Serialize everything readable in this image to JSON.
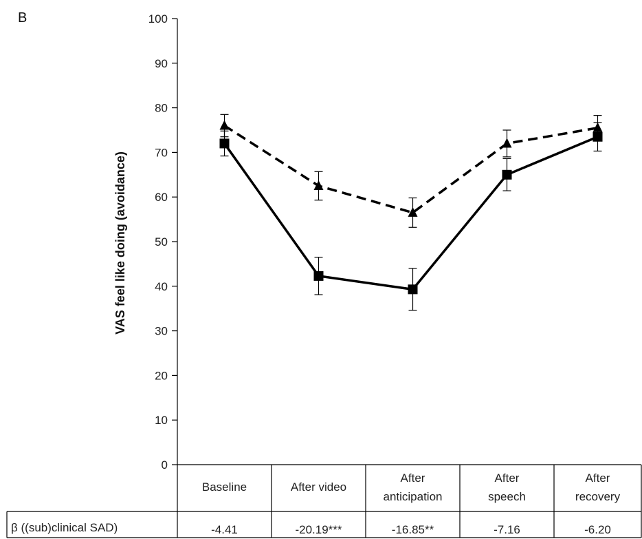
{
  "panel_label": "B",
  "chart_data": {
    "type": "line",
    "ylabel": "VAS feel like doing (avoidance)",
    "ylim": [
      0,
      100
    ],
    "yticks": [
      "0",
      "10",
      "20",
      "30",
      "40",
      "50",
      "60",
      "70",
      "80",
      "90",
      "100"
    ],
    "categories": [
      [
        "Baseline"
      ],
      [
        "After video"
      ],
      [
        "After",
        "anticipation"
      ],
      [
        "After",
        "speech"
      ],
      [
        "After",
        "recovery"
      ]
    ],
    "series": [
      {
        "style": "dashed",
        "marker": "triangle",
        "color": "#000000",
        "values": [
          76,
          62.5,
          56.5,
          72,
          75.5
        ],
        "err": [
          2.5,
          3.2,
          3.3,
          3.0,
          2.8
        ]
      },
      {
        "style": "solid",
        "marker": "square",
        "color": "#000000",
        "values": [
          72,
          42.3,
          39.3,
          65,
          73.5
        ],
        "err": [
          2.8,
          4.2,
          4.7,
          3.6,
          3.2
        ]
      }
    ],
    "table": {
      "row_label": "β  ((sub)clinical SAD)",
      "values": [
        "-4.41",
        "-20.19***",
        "-16.85**",
        "-7.16",
        "-6.20"
      ]
    },
    "grid": false,
    "legend": "none"
  }
}
